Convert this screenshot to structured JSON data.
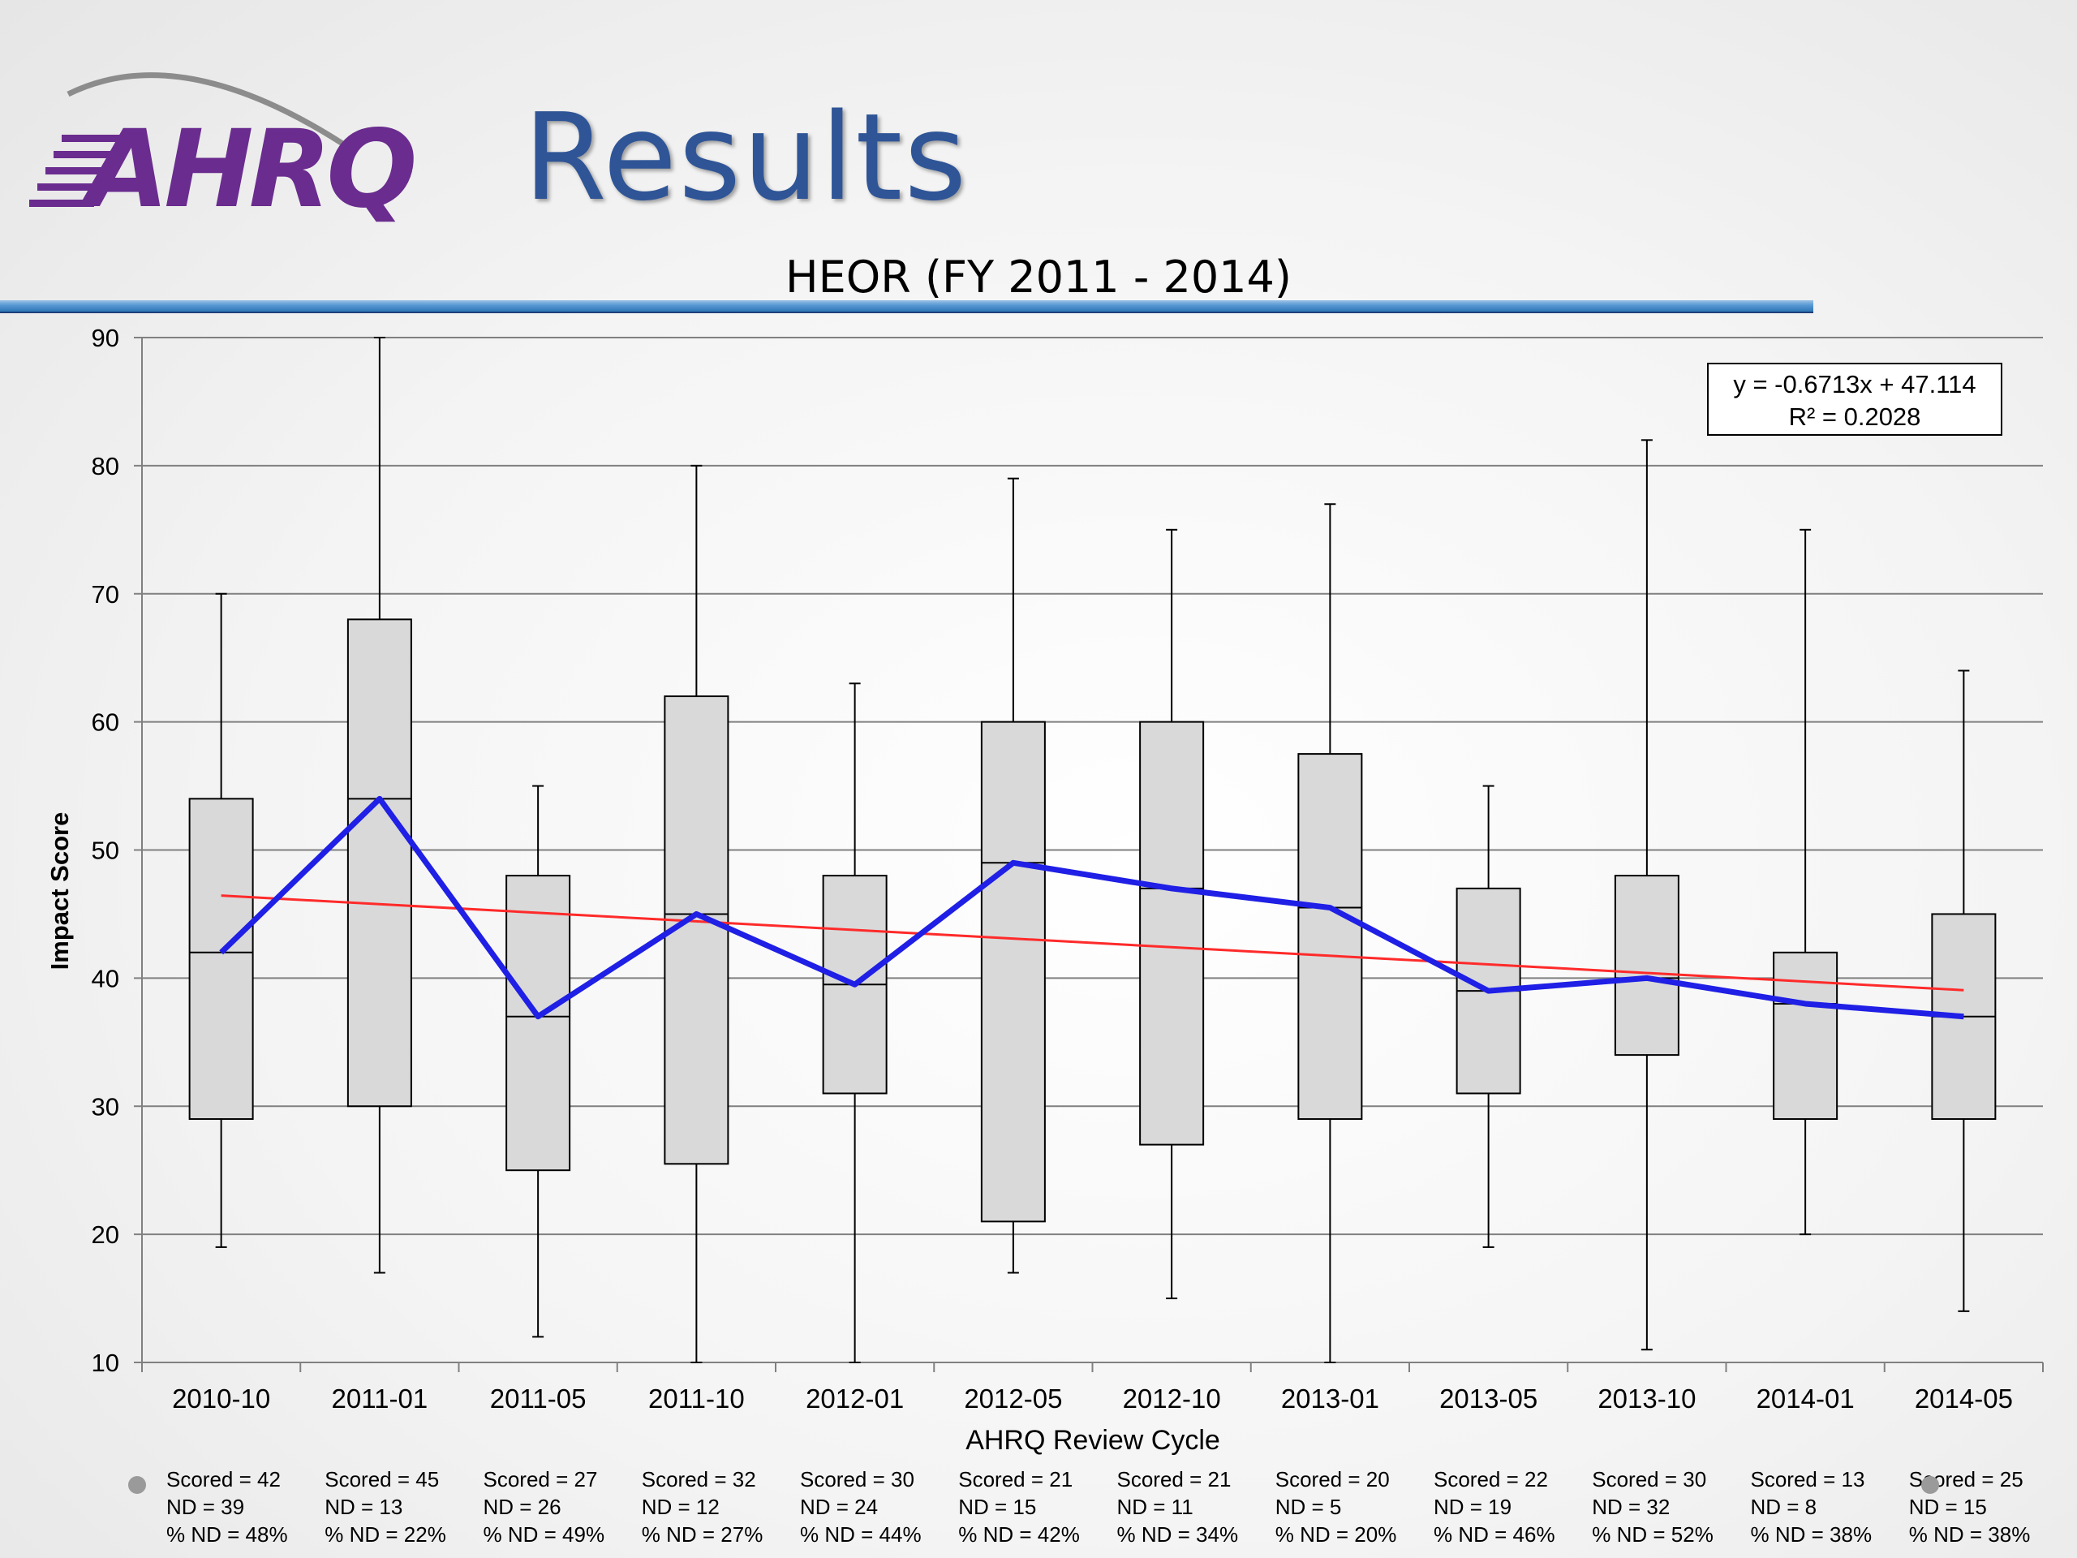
{
  "slide": {
    "title": "Results"
  },
  "logo": {
    "text": "AHRQ",
    "color": "#6a2c8e"
  },
  "chart_data": {
    "type": "box",
    "title": "HEOR (FY 2011 - 2014)",
    "xlabel": "AHRQ Review Cycle",
    "ylabel": "Impact Score",
    "ylim": [
      10,
      90
    ],
    "yticks": [
      10,
      20,
      30,
      40,
      50,
      60,
      70,
      80,
      90
    ],
    "grid": true,
    "categories": [
      "2010-10",
      "2011-01",
      "2011-05",
      "2011-10",
      "2012-01",
      "2012-05",
      "2012-10",
      "2013-01",
      "2013-05",
      "2013-10",
      "2014-01",
      "2014-05"
    ],
    "boxes": [
      {
        "min": 19,
        "q1": 29,
        "median": 42,
        "q3": 54,
        "max": 70
      },
      {
        "min": 17,
        "q1": 30,
        "median": 54,
        "q3": 68,
        "max": 90
      },
      {
        "min": 12,
        "q1": 25,
        "median": 37,
        "q3": 48,
        "max": 55
      },
      {
        "min": 10,
        "q1": 25.5,
        "median": 45,
        "q3": 62,
        "max": 80
      },
      {
        "min": 10,
        "q1": 31,
        "median": 39.5,
        "q3": 48,
        "max": 63
      },
      {
        "min": 17,
        "q1": 21,
        "median": 49,
        "q3": 60,
        "max": 79
      },
      {
        "min": 15,
        "q1": 27,
        "median": 47,
        "q3": 60,
        "max": 75
      },
      {
        "min": 10,
        "q1": 29,
        "median": 45.5,
        "q3": 57.5,
        "max": 77
      },
      {
        "min": 19,
        "q1": 31,
        "median": 39,
        "q3": 47,
        "max": 55
      },
      {
        "min": 11,
        "q1": 34,
        "median": 40,
        "q3": 48,
        "max": 82
      },
      {
        "min": 20,
        "q1": 29,
        "median": 38,
        "q3": 42,
        "max": 75
      },
      {
        "min": 14,
        "q1": 29,
        "median": 37,
        "q3": 45,
        "max": 64
      }
    ],
    "median_line": {
      "color": "#1f1fe6"
    },
    "trendline": {
      "color": "#ff2a2a",
      "equation": "y = -0.6713x + 47.114",
      "r2": "R² = 0.2028",
      "slope": -0.6713,
      "intercept": 47.114
    },
    "annotations": [
      [
        "Scored = 42",
        "ND = 39",
        "% ND = 48%"
      ],
      [
        "Scored = 45",
        "ND = 13",
        "% ND = 22%"
      ],
      [
        "Scored = 27",
        "ND = 26",
        "% ND = 49%"
      ],
      [
        "Scored = 32",
        "ND = 12",
        "% ND = 27%"
      ],
      [
        "Scored = 30",
        "ND = 24",
        "% ND = 44%"
      ],
      [
        "Scored = 21",
        "ND = 15",
        "% ND = 42%"
      ],
      [
        "Scored = 21",
        "ND = 11",
        "% ND = 34%"
      ],
      [
        "Scored = 20",
        "ND = 5",
        "% ND = 20%"
      ],
      [
        "Scored = 22",
        "ND = 19",
        "% ND = 46%"
      ],
      [
        "Scored = 30",
        "ND = 32",
        "% ND = 52%"
      ],
      [
        "Scored = 13",
        "ND = 8",
        "% ND = 38%"
      ],
      [
        "Scored = 25",
        "ND = 15",
        "% ND = 38%"
      ]
    ],
    "box_fill": "#d9d9d9"
  }
}
